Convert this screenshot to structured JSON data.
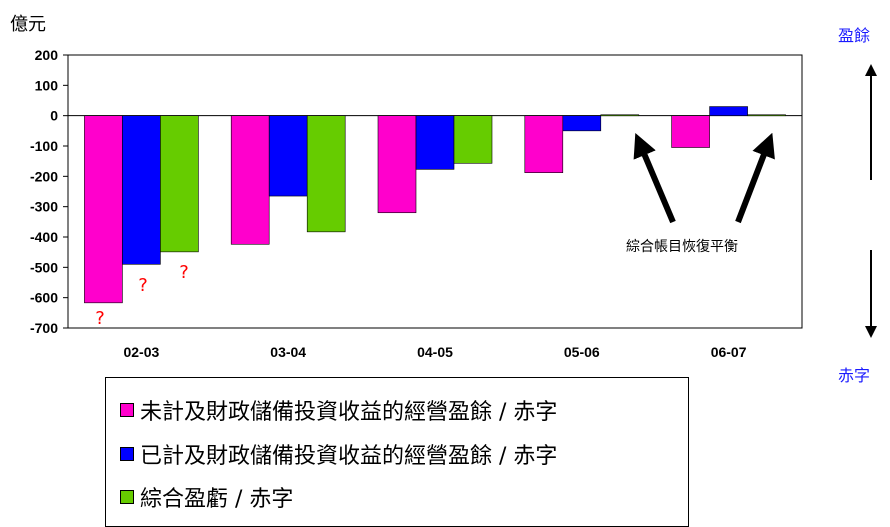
{
  "chart_data": {
    "type": "bar",
    "unit_label": "億元",
    "categories": [
      "02-03",
      "03-04",
      "04-05",
      "05-06",
      "06-07"
    ],
    "ylim": [
      -700,
      200
    ],
    "yticks": [
      200,
      100,
      0,
      -100,
      -200,
      -300,
      -400,
      -500,
      -600,
      -700
    ],
    "series": [
      {
        "name": "未計及財政儲備投資收益的經營盈餘 / 赤字",
        "color": "#ff00cc",
        "values": [
          -617,
          -424,
          -320,
          -188,
          -105
        ]
      },
      {
        "name": "已計及財政儲備投資收益的經營盈餘 / 赤字",
        "color": "#0000ff",
        "values": [
          -490,
          -265,
          -177,
          -50,
          30
        ]
      },
      {
        "name": "綜合盈虧 / 赤字",
        "color": "#66cc00",
        "values": [
          -449,
          -383,
          -157,
          3,
          3
        ]
      }
    ],
    "question_marks": [
      "?",
      "?",
      "?"
    ],
    "annotation": "綜合帳目恢復平衡",
    "axis_top_label": "盈餘",
    "axis_bottom_label": "赤字"
  }
}
